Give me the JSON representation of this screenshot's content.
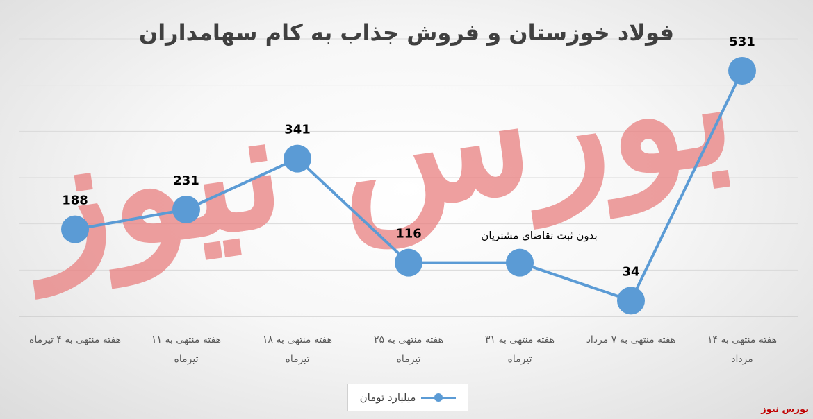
{
  "chart_data": {
    "type": "line",
    "title": "فولاد خوزستان و فروش جذاب به کام سهامداران",
    "categories": [
      [
        "هفته منتهی به ۴ تیرماه"
      ],
      [
        "هفته منتهی به ۱۱",
        "تیرماه"
      ],
      [
        "هفته منتهی به ۱۸",
        "تیرماه"
      ],
      [
        "هفته منتهی به ۲۵",
        "تیرماه"
      ],
      [
        "هفته منتهی به ۳۱",
        "تیرماه"
      ],
      [
        "هفته منتهی به ۷ مرداد"
      ],
      [
        "هفته منتهی به ۱۴",
        "مرداد"
      ]
    ],
    "series": [
      {
        "name": "میلیارد تومان",
        "values": [
          188,
          231,
          341,
          116,
          116,
          34,
          531
        ],
        "data_labels": [
          "188",
          "231",
          "341",
          "116",
          "",
          "34",
          "531"
        ],
        "color": "#5b9bd5"
      }
    ],
    "annotations": [
      {
        "text": "بدون ثبت تقاضای مشتریان",
        "category_index": 4
      }
    ],
    "ylim": [
      0,
      600
    ],
    "grid": true,
    "legend": "bottom"
  },
  "watermark": {
    "text": "بورس نیوز",
    "color": "#e98080"
  },
  "brand": "بورس نیوز"
}
